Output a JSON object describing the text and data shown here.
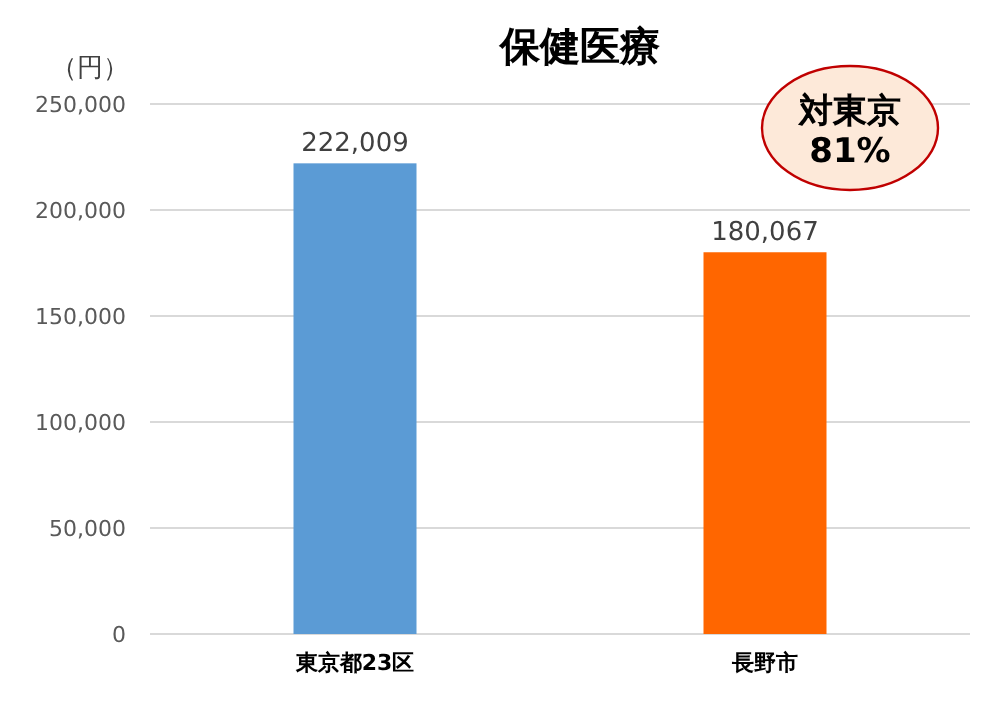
{
  "chart_data": {
    "type": "bar",
    "title": "保健医療",
    "ylabel": "（円）",
    "categories": [
      "東京都23区",
      "長野市"
    ],
    "values": [
      222009,
      180067
    ],
    "colors": [
      "#5b9bd5",
      "#ff6600"
    ],
    "value_labels": [
      "222,009",
      "180,067"
    ],
    "ylim": [
      0,
      250000
    ],
    "yticks": [
      0,
      {
        "value": 50000,
        "label": "50,000"
      },
      {
        "value": 100000,
        "label": "100,000"
      },
      {
        "value": 150000,
        "label": "150,000"
      },
      {
        "value": 200000,
        "label": "200,000"
      },
      {
        "value": 250000,
        "label": "250,000"
      }
    ],
    "grid": "y",
    "annotations": [
      "対東京\n81%"
    ]
  }
}
